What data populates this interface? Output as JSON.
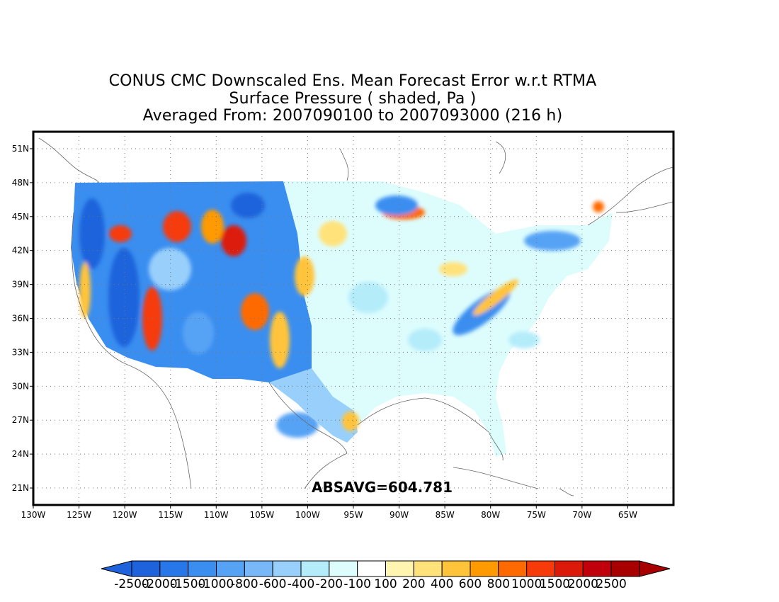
{
  "title": {
    "line1": "CONUS CMC Downscaled Ens. Mean Forecast Error w.r.t RTMA",
    "line2": "Surface Pressure ( shaded, Pa )",
    "line3": "Averaged From: 2007090100 to 2007093000 (216 h)"
  },
  "stat": "ABSAVG=604.781",
  "map": {
    "lon_range": [
      -130,
      -60
    ],
    "lat_range": [
      19.5,
      52.5
    ],
    "lat_ticks": [
      "51N",
      "48N",
      "45N",
      "42N",
      "39N",
      "36N",
      "33N",
      "30N",
      "27N",
      "24N",
      "21N"
    ],
    "lon_ticks": [
      "130W",
      "125W",
      "120W",
      "115W",
      "110W",
      "105W",
      "100W",
      "95W",
      "90W",
      "85W",
      "80W",
      "75W",
      "70W",
      "65W"
    ],
    "gridlines": "dotted"
  },
  "colorbar": {
    "labels": [
      "-2500",
      "-2000",
      "-1500",
      "-1000",
      "-800",
      "-600",
      "-400",
      "-200",
      "-100",
      "100",
      "200",
      "400",
      "600",
      "800",
      "1000",
      "1500",
      "2000",
      "2500"
    ],
    "colors": [
      "#1e63dc",
      "#2877e8",
      "#3a8ef0",
      "#56a3f5",
      "#78b8f8",
      "#98cffb",
      "#b4ecfa",
      "#ddfdfd",
      "#ffffff",
      "#fff5b0",
      "#ffe27a",
      "#ffc43a",
      "#ff9a00",
      "#ff6a00",
      "#f63a0a",
      "#dc1a0a",
      "#c0000a",
      "#a80000"
    ],
    "left_arrow_color": "#1e63dc",
    "right_arrow_color": "#a80000"
  }
}
